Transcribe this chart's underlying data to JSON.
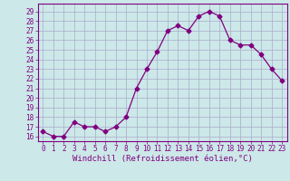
{
  "x": [
    0,
    1,
    2,
    3,
    4,
    5,
    6,
    7,
    8,
    9,
    10,
    11,
    12,
    13,
    14,
    15,
    16,
    17,
    18,
    19,
    20,
    21,
    22,
    23
  ],
  "y": [
    16.5,
    16.0,
    16.0,
    17.5,
    17.0,
    17.0,
    16.5,
    17.0,
    18.0,
    21.0,
    23.0,
    24.8,
    27.0,
    27.5,
    27.0,
    28.5,
    29.0,
    28.5,
    26.0,
    25.5,
    25.5,
    24.5,
    23.0,
    21.8
  ],
  "line_color": "#800080",
  "marker": "D",
  "marker_size": 2.5,
  "bg_color": "#cce8e8",
  "grid_color": "#aaaacc",
  "ylabel_ticks": [
    16,
    17,
    18,
    19,
    20,
    21,
    22,
    23,
    24,
    25,
    26,
    27,
    28,
    29
  ],
  "xlabel": "Windchill (Refroidissement éolien,°C)",
  "ylim": [
    15.5,
    29.8
  ],
  "xlim": [
    -0.5,
    23.5
  ],
  "tick_fontsize": 5.5,
  "label_fontsize": 6.5
}
